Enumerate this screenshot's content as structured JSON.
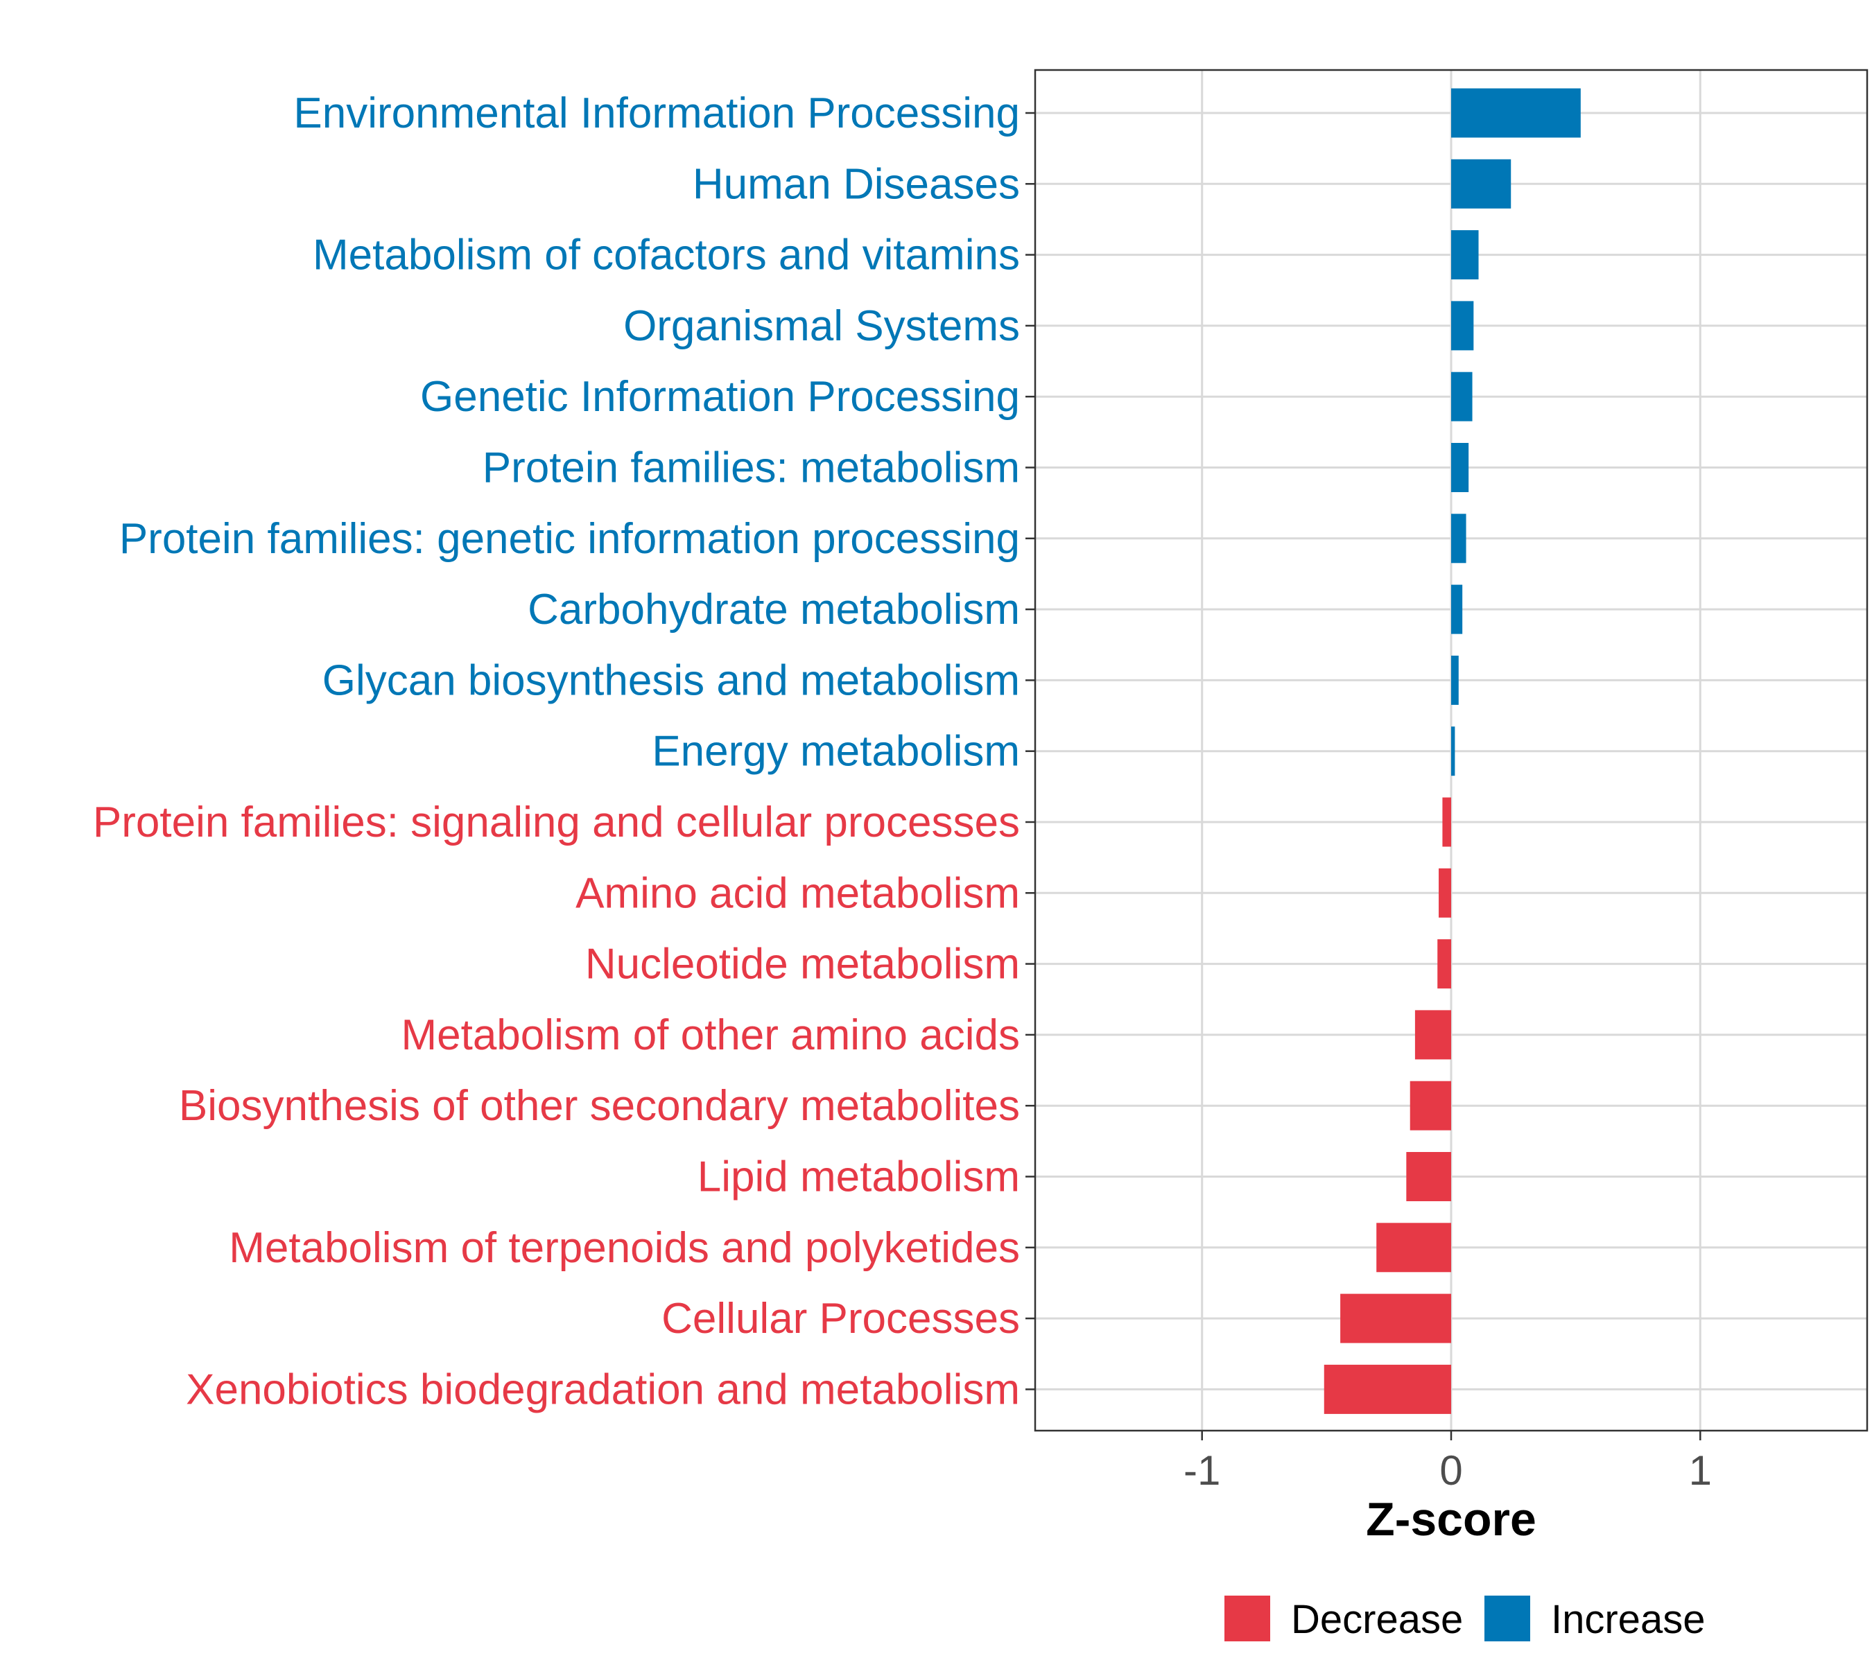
{
  "chart_data": {
    "type": "bar",
    "orientation": "horizontal",
    "title": "",
    "xlabel": "Z-score",
    "ylabel": "",
    "xlim": [
      -1.67,
      1.67
    ],
    "xticks": [
      -1,
      0,
      1
    ],
    "xtick_labels": [
      "-1",
      "0",
      "1"
    ],
    "grid": true,
    "legend_position": "bottom",
    "legend": [
      {
        "name": "Decrease",
        "color": "#E63946"
      },
      {
        "name": "Increase",
        "color": "#0077B6"
      }
    ],
    "categories": [
      "Environmental Information Processing",
      "Human Diseases",
      "Metabolism of cofactors and vitamins",
      "Organismal Systems",
      "Genetic Information Processing",
      "Protein families: metabolism",
      "Protein families: genetic information processing",
      "Carbohydrate metabolism",
      "Glycan biosynthesis and metabolism",
      "Energy metabolism",
      "Protein families: signaling and cellular processes",
      "Amino acid metabolism",
      "Nucleotide metabolism",
      "Metabolism of other amino acids",
      "Biosynthesis of other secondary metabolites",
      "Lipid metabolism",
      "Metabolism of terpenoids and polyketides",
      "Cellular Processes",
      "Xenobiotics biodegradation and metabolism"
    ],
    "values": [
      0.52,
      0.24,
      0.11,
      0.09,
      0.085,
      0.07,
      0.06,
      0.045,
      0.03,
      0.015,
      -0.035,
      -0.05,
      -0.055,
      -0.145,
      -0.165,
      -0.18,
      -0.3,
      -0.445,
      -0.51
    ],
    "groups": [
      "Increase",
      "Increase",
      "Increase",
      "Increase",
      "Increase",
      "Increase",
      "Increase",
      "Increase",
      "Increase",
      "Increase",
      "Decrease",
      "Decrease",
      "Decrease",
      "Decrease",
      "Decrease",
      "Decrease",
      "Decrease",
      "Decrease",
      "Decrease"
    ]
  }
}
